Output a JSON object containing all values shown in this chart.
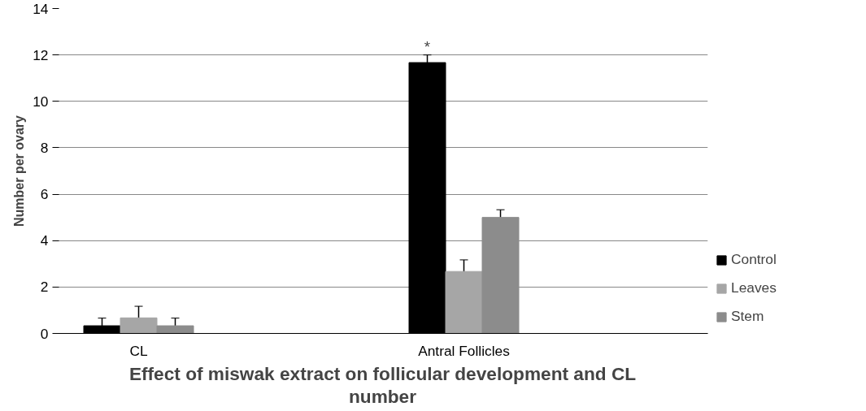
{
  "chart_data": {
    "type": "bar",
    "title": "Effect of miswak extract on follicular development and CL number",
    "ylabel": "Number per ovary",
    "categories": [
      "CL",
      null,
      "Antral Follicles",
      null
    ],
    "series": [
      {
        "name": "Control",
        "color": "#000000",
        "values": [
          0.33,
          null,
          11.67,
          null
        ],
        "errors": [
          0.33,
          null,
          0.33,
          null
        ]
      },
      {
        "name": "Leaves",
        "color": "#a6a6a6",
        "values": [
          0.67,
          null,
          2.67,
          null
        ],
        "errors": [
          0.5,
          null,
          0.5,
          null
        ]
      },
      {
        "name": "Stem",
        "color": "#8c8c8c",
        "values": [
          0.33,
          null,
          5.0,
          null
        ],
        "errors": [
          0.33,
          null,
          0.33,
          null
        ]
      }
    ],
    "annotations": [
      "*"
    ],
    "ylim": [
      0,
      14
    ],
    "yticks": [
      0,
      2,
      4,
      6,
      8,
      10,
      12,
      14
    ],
    "grid": "y",
    "legend": "right"
  }
}
